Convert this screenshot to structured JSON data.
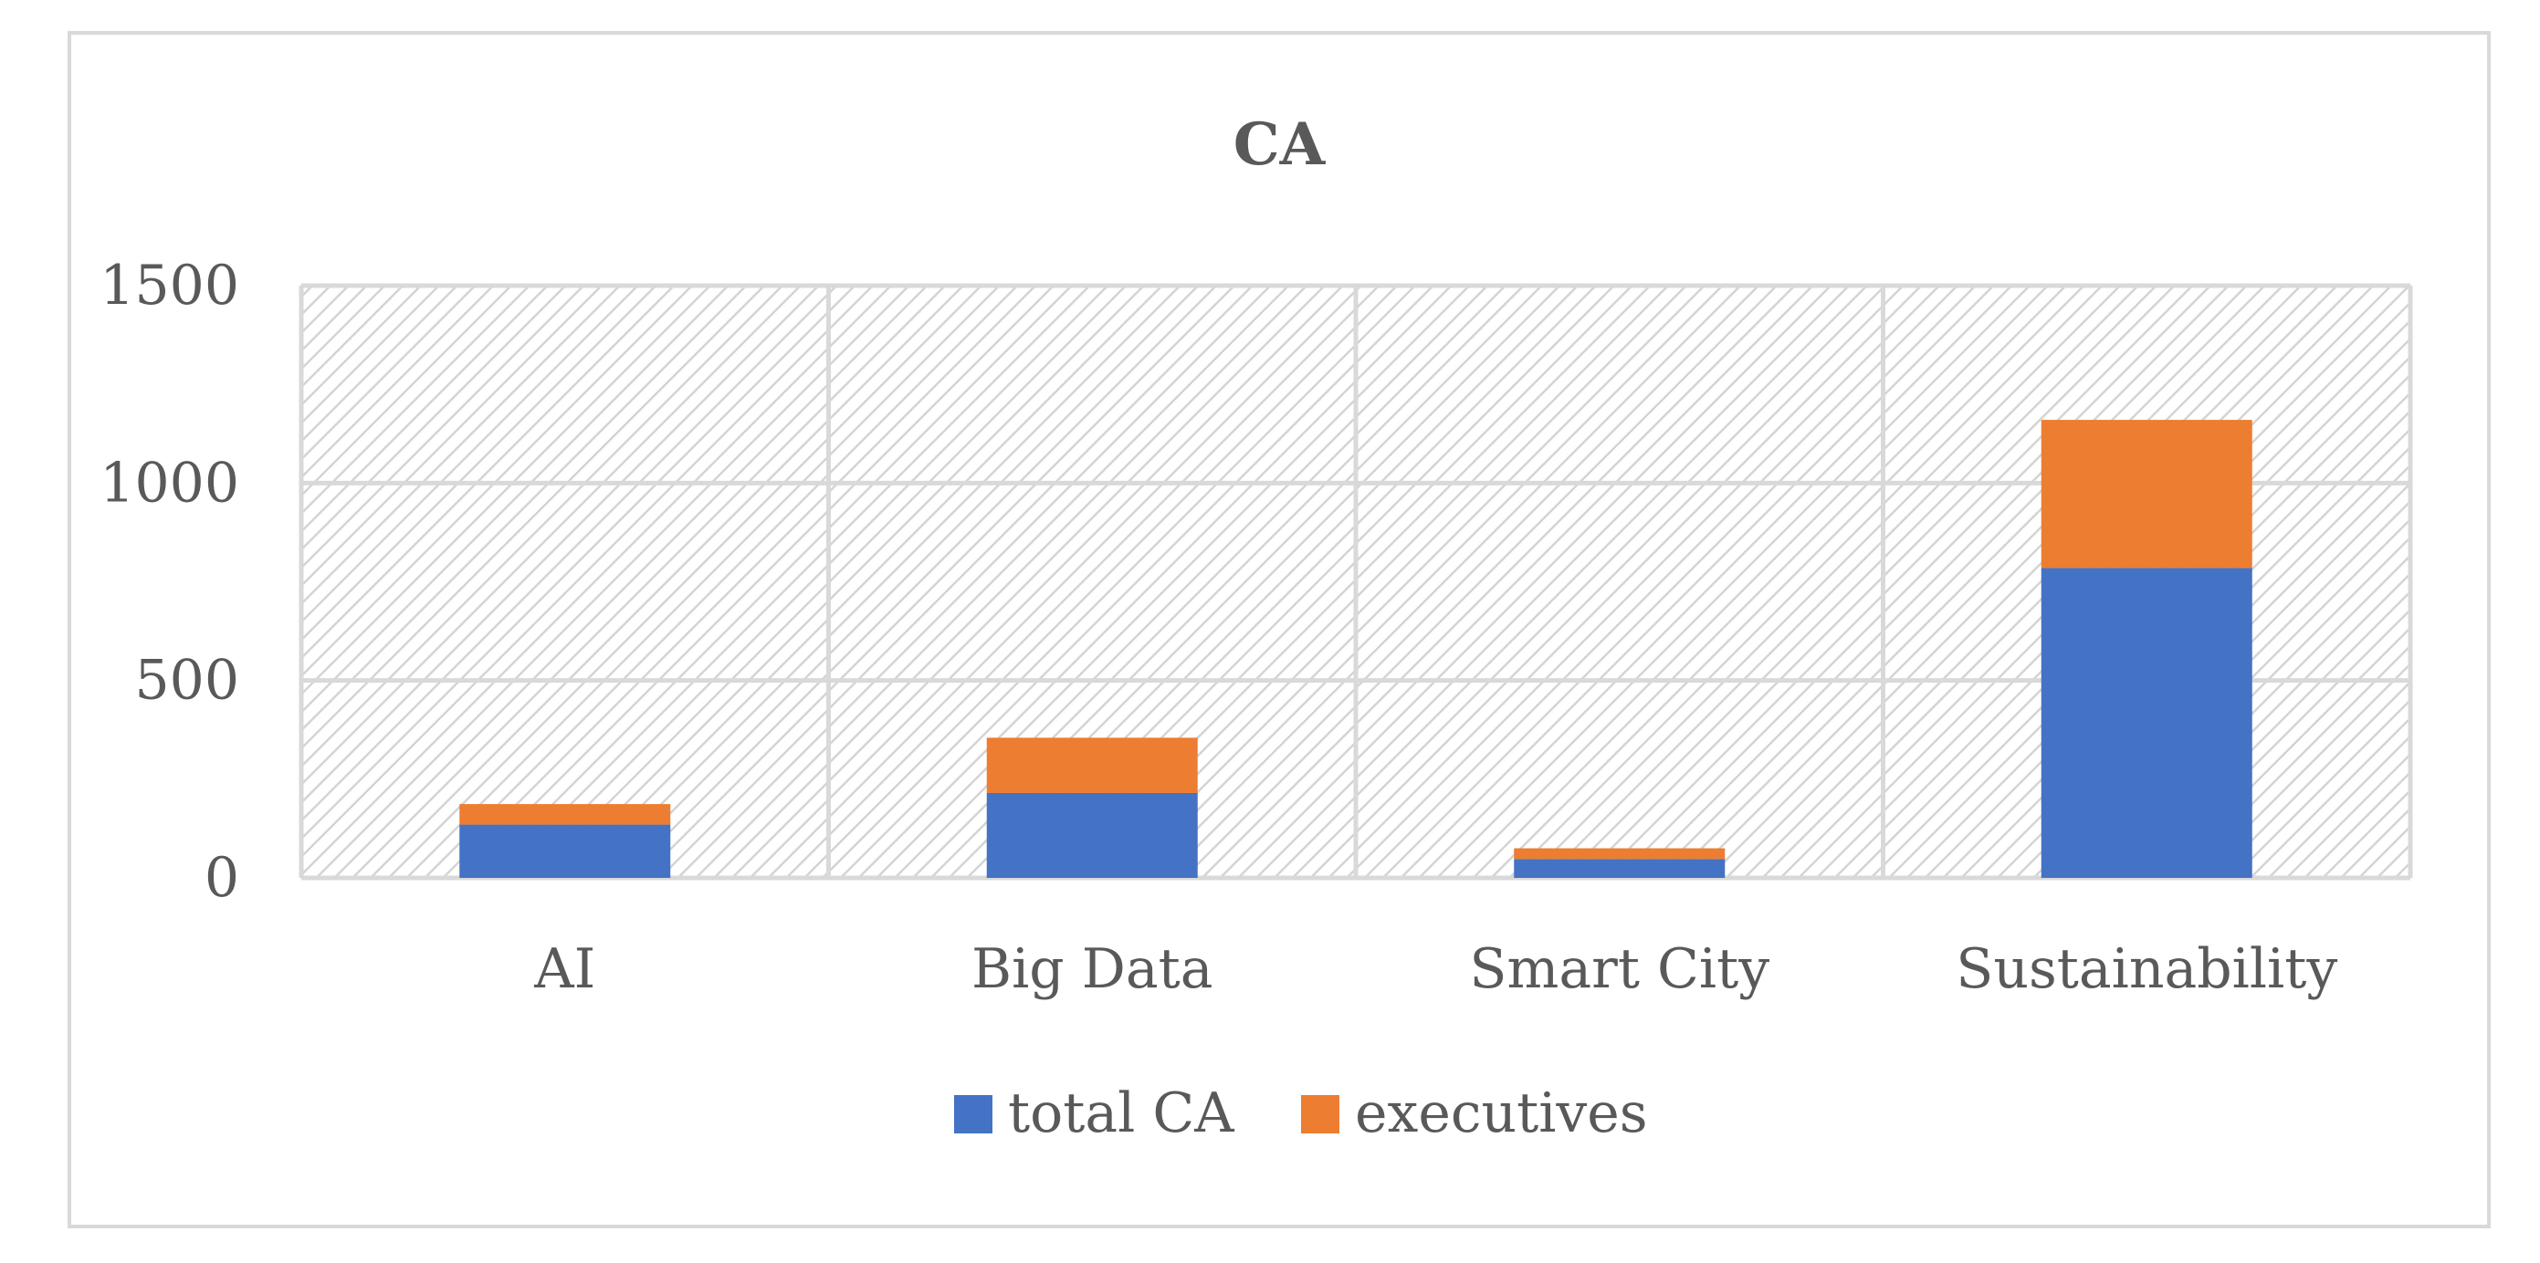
{
  "chart_data": {
    "type": "bar",
    "stacked": true,
    "title": "CA",
    "xlabel": "",
    "ylabel": "",
    "categories": [
      "AI",
      "Big Data",
      "Smart City",
      "Sustainability"
    ],
    "series": [
      {
        "name": "total CA",
        "values": [
          135,
          215,
          48,
          785
        ],
        "color": "#4472c4"
      },
      {
        "name": "executives",
        "values": [
          52,
          140,
          27,
          375
        ],
        "color": "#ed7d31"
      }
    ],
    "ylim": [
      0,
      1500
    ],
    "yticks": [
      0,
      500,
      1000,
      1500
    ],
    "grid": true,
    "legend_position": "bottom-center"
  }
}
